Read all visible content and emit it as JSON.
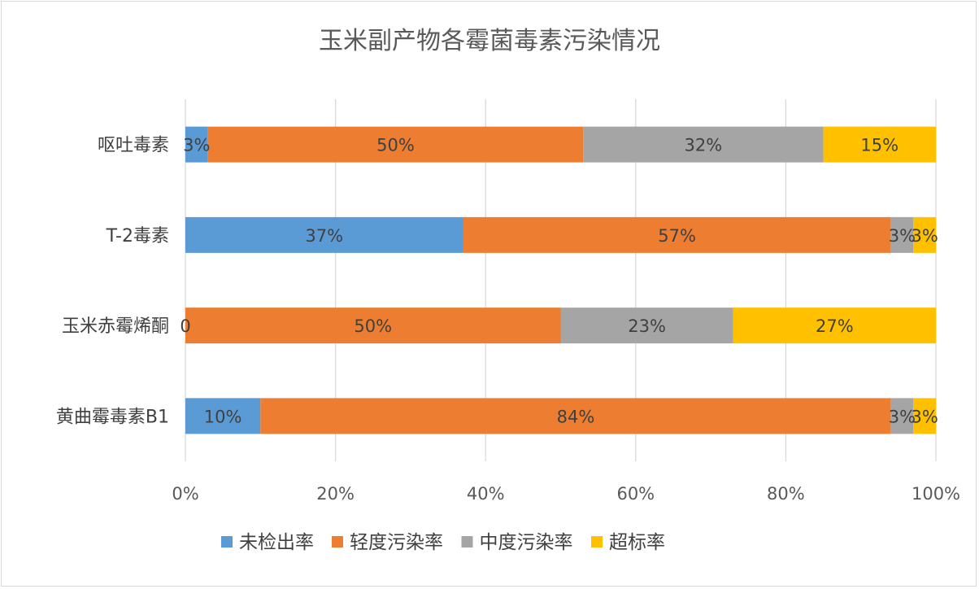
{
  "chart_data": {
    "type": "bar",
    "orientation": "horizontal",
    "stacked": "percent",
    "title": "玉米副产物各霉菌毒素污染情况",
    "categories": [
      "呕吐毒素",
      "T-2毒素",
      "玉米赤霉烯酮",
      "黄曲霉毒素B1"
    ],
    "series": [
      {
        "name": "未检出率",
        "color": "#5B9BD5",
        "values": [
          3,
          37,
          0,
          10
        ],
        "labels": [
          "3%",
          "37%",
          "0",
          "10%"
        ]
      },
      {
        "name": "轻度污染率",
        "color": "#ED7D31",
        "values": [
          50,
          57,
          50,
          84
        ],
        "labels": [
          "50%",
          "57%",
          "50%",
          "84%"
        ]
      },
      {
        "name": "中度污染率",
        "color": "#A5A5A5",
        "values": [
          32,
          3,
          23,
          3
        ],
        "labels": [
          "32%",
          "3%",
          "23%",
          "3%"
        ]
      },
      {
        "name": "超标率",
        "color": "#FFC000",
        "values": [
          15,
          3,
          27,
          3
        ],
        "labels": [
          "15%",
          "3%",
          "27%",
          "3%"
        ]
      }
    ],
    "xlim": [
      0,
      100
    ],
    "xticks": [
      "0%",
      "20%",
      "40%",
      "60%",
      "80%",
      "100%"
    ],
    "grid": true,
    "legend_position": "bottom"
  }
}
